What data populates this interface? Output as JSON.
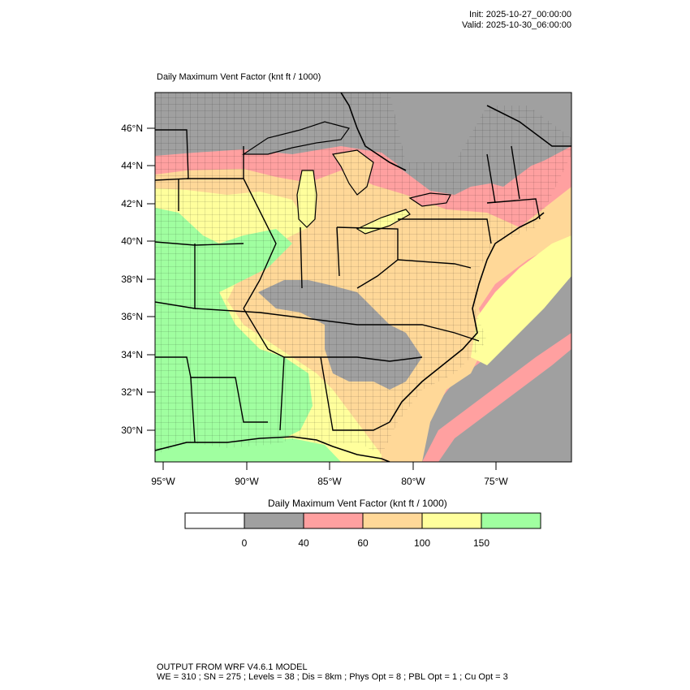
{
  "header": {
    "init": "Init: 2025-10-27_00:00:00",
    "valid": "Valid: 2025-10-30_06:00:00"
  },
  "map": {
    "title": "Daily Maximum Vent Factor   (knt ft / 1000)",
    "lat_labels": [
      "46°N",
      "44°N",
      "42°N",
      "40°N",
      "38°N",
      "36°N",
      "34°N",
      "32°N",
      "30°N"
    ],
    "lon_labels": [
      "95°W",
      "90°W",
      "85°W",
      "80°W",
      "75°W"
    ],
    "colors": {
      "none": "#ffffff",
      "gray": "#a0a0a0",
      "pink": "#ffa0a0",
      "orange": "#ffd898",
      "yellow": "#ffff9c",
      "green": "#a0ffa0"
    }
  },
  "legend": {
    "title": "Daily Maximum Vent Factor  (knt ft / 1000)",
    "labels": [
      "0",
      "40",
      "60",
      "100",
      "150"
    ],
    "bins": [
      {
        "color": "#ffffff"
      },
      {
        "color": "#a0a0a0"
      },
      {
        "color": "#ffa0a0"
      },
      {
        "color": "#ffd898"
      },
      {
        "color": "#ffff9c"
      },
      {
        "color": "#a0ffa0"
      }
    ]
  },
  "footer": {
    "line1": "OUTPUT FROM WRF V4.6.1 MODEL",
    "line2": "WE = 310 ; SN = 275 ; Levels = 38 ; Dis = 8km ; Phys Opt = 8 ; PBL Opt = 1 ; Cu Opt = 3"
  }
}
